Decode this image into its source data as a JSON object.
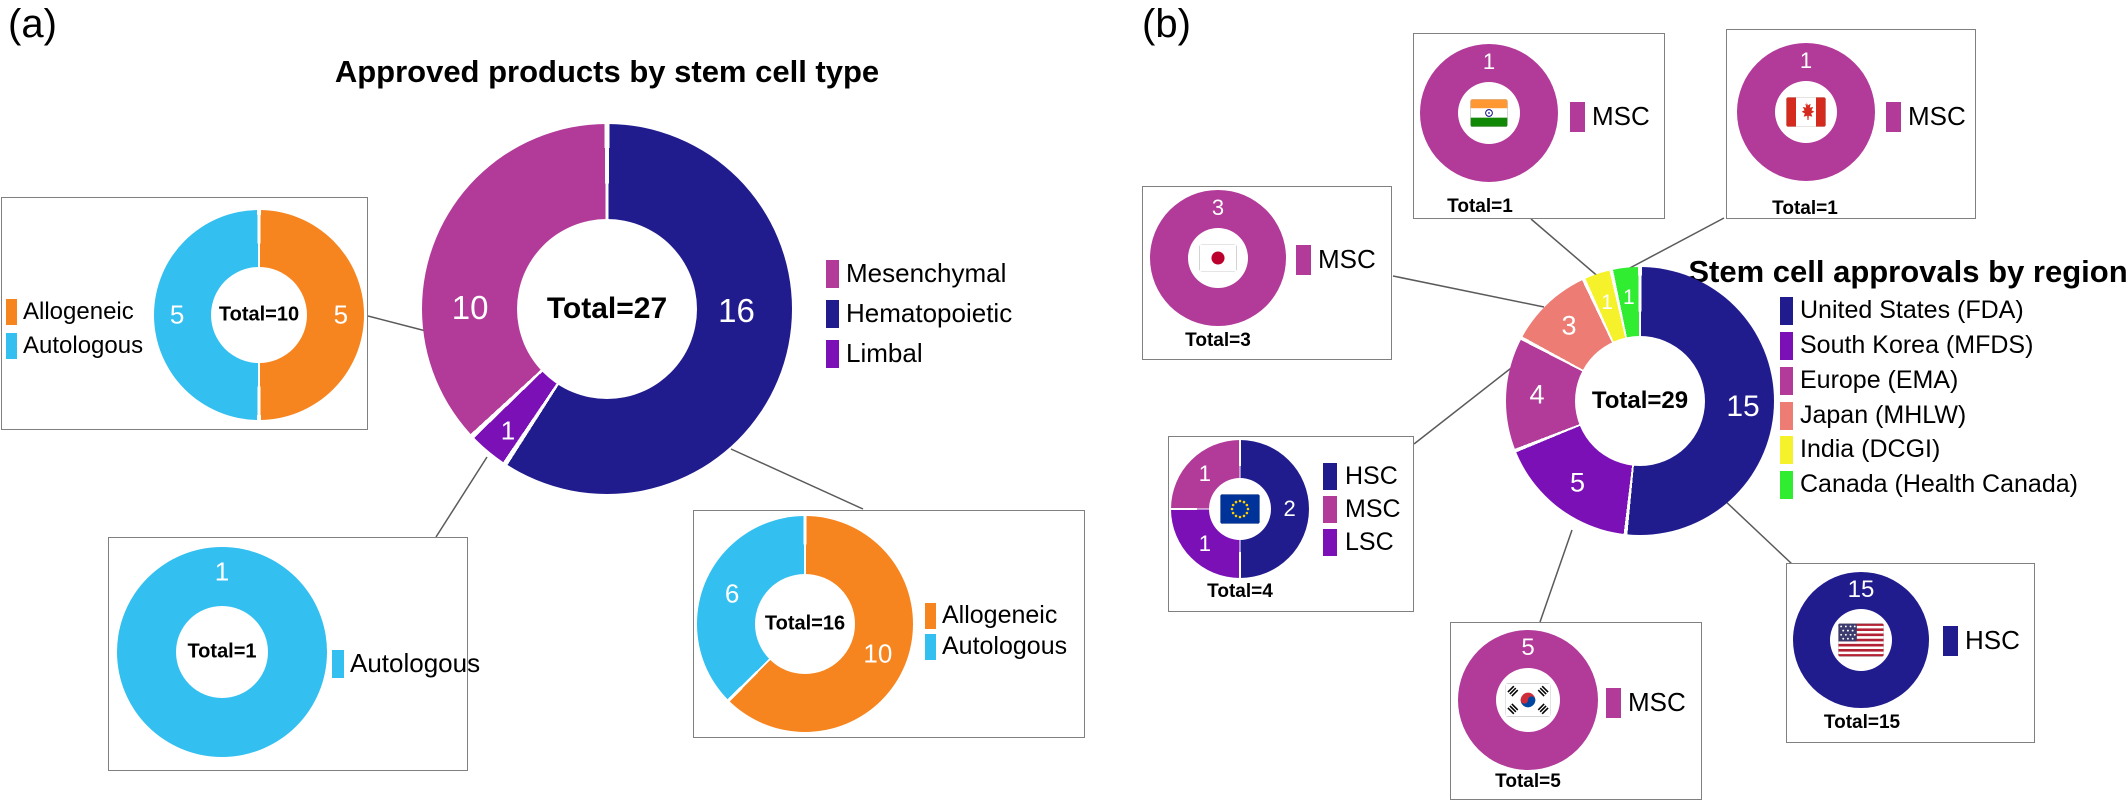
{
  "colors": {
    "navy": "#211C8D",
    "magenta": "#B23A99",
    "violet": "#7B10B6",
    "orange": "#F6851F",
    "cyan": "#33BFF0",
    "salmon": "#EC7C74",
    "yellow": "#F5F12B",
    "green": "#31ED31"
  },
  "panel_a": {
    "tag": "(a)",
    "title": "Approved products by stem cell type",
    "legend": [
      {
        "label": "Mesenchymal",
        "color": "#B23A99"
      },
      {
        "label": "Hematopoietic",
        "color": "#211C8D"
      },
      {
        "label": "Limbal",
        "color": "#7B10B6"
      }
    ],
    "box10_legend": [
      {
        "label": "Allogeneic",
        "color": "#F6851F"
      },
      {
        "label": "Autologous",
        "color": "#33BFF0"
      }
    ],
    "box1_legend": [
      {
        "label": "Autologous",
        "color": "#33BFF0"
      }
    ],
    "box16_legend": [
      {
        "label": "Allogeneic",
        "color": "#F6851F"
      },
      {
        "label": "Autologous",
        "color": "#33BFF0"
      }
    ]
  },
  "panel_b": {
    "tag": "(b)",
    "title": "Stem cell approvals by region",
    "legend": [
      {
        "label": "United States (FDA)",
        "color": "#211C8D"
      },
      {
        "label": "South Korea (MFDS)",
        "color": "#7B10B6"
      },
      {
        "label": "Europe (EMA)",
        "color": "#B23A99"
      },
      {
        "label": "Japan (MHLW)",
        "color": "#EC7C74"
      },
      {
        "label": "India (DCGI)",
        "color": "#F5F12B"
      },
      {
        "label": "Canada (Health Canada)",
        "color": "#31ED31"
      }
    ],
    "boxes": {
      "india": {
        "flag": "india-flag",
        "total_label": "Total=1",
        "legend": [
          {
            "label": "MSC",
            "color": "#B23A99"
          }
        ]
      },
      "canada": {
        "flag": "canada-flag",
        "total_label": "Total=1",
        "legend": [
          {
            "label": "MSC",
            "color": "#B23A99"
          }
        ]
      },
      "japan": {
        "flag": "japan-flag",
        "total_label": "Total=3",
        "legend": [
          {
            "label": "MSC",
            "color": "#B23A99"
          }
        ]
      },
      "europe": {
        "flag": "eu-flag",
        "total_label": "Total=4",
        "legend": [
          {
            "label": "HSC",
            "color": "#211C8D"
          },
          {
            "label": "MSC",
            "color": "#B23A99"
          },
          {
            "label": "LSC",
            "color": "#7B10B6"
          }
        ]
      },
      "south_korea": {
        "flag": "south-korea-flag",
        "total_label": "Total=5",
        "legend": [
          {
            "label": "MSC",
            "color": "#B23A99"
          }
        ]
      },
      "united_states": {
        "flag": "us-flag",
        "total_label": "Total=15",
        "legend": [
          {
            "label": "HSC",
            "color": "#211C8D"
          }
        ]
      }
    }
  },
  "chart_data": [
    {
      "id": "a-main",
      "type": "pie",
      "title": "Approved products by stem cell type",
      "center_label": "Total=27",
      "total": 27,
      "gap_deg": 1.6,
      "segments": [
        {
          "name": "Hematopoietic",
          "value": 16,
          "color": "#211C8D",
          "label": "16",
          "label_angle": 91,
          "label_r": 0.7,
          "label_size": 33
        },
        {
          "name": "Limbal",
          "value": 1,
          "color": "#7B10B6",
          "label": "1",
          "label_angle": 219,
          "label_r": 0.85,
          "label_size": 26
        },
        {
          "name": "Mesenchymal",
          "value": 10,
          "color": "#B23A99",
          "label": "10",
          "label_angle": 270.5,
          "label_r": 0.74,
          "label_size": 33
        }
      ]
    },
    {
      "id": "a-allo-auto-10",
      "type": "pie",
      "center_label": "Total=10",
      "total": 10,
      "gap_deg": 2,
      "label_r": 0.78,
      "label_size": 26,
      "segments": [
        {
          "name": "Allogeneic",
          "value": 5,
          "color": "#F6851F",
          "label": "5"
        },
        {
          "name": "Autologous",
          "value": 5,
          "color": "#33BFF0",
          "label": "5"
        }
      ]
    },
    {
      "id": "a-auto-1",
      "type": "pie",
      "center_label": "Total=1",
      "total": 1,
      "label_r": 0.76,
      "label_size": 26,
      "segments": [
        {
          "name": "Autologous",
          "value": 1,
          "color": "#33BFF0",
          "label": "1",
          "label_angle": 0
        }
      ]
    },
    {
      "id": "a-allo-auto-16",
      "type": "pie",
      "center_label": "Total=16",
      "total": 16,
      "gap_deg": 1.8,
      "label_r": 0.73,
      "label_size": 26,
      "segments": [
        {
          "name": "Allogeneic",
          "value": 10,
          "color": "#F6851F",
          "label": "10"
        },
        {
          "name": "Autologous",
          "value": 6,
          "color": "#33BFF0",
          "label": "6"
        }
      ]
    },
    {
      "id": "b-main",
      "type": "pie",
      "title": "Stem cell approvals by region",
      "center_label": "Total=29",
      "total": 29,
      "gap_deg": 1.6,
      "label_r": 0.77,
      "segments": [
        {
          "name": "United States (FDA)",
          "value": 15,
          "color": "#211C8D",
          "label": "15",
          "label_size": 30
        },
        {
          "name": "South Korea (MFDS)",
          "value": 5,
          "color": "#7B10B6",
          "label": "5",
          "label_size": 27
        },
        {
          "name": "Europe (EMA)",
          "value": 4,
          "color": "#B23A99",
          "label": "4",
          "label_size": 27
        },
        {
          "name": "Japan (MHLW)",
          "value": 3,
          "color": "#EC7C74",
          "label": "3",
          "label_size": 27
        },
        {
          "name": "India (DCGI)",
          "value": 1,
          "color": "#F5F12B",
          "label": "1",
          "label_size": 21
        },
        {
          "name": "Canada (Health Canada)",
          "value": 1,
          "color": "#31ED31",
          "label": "1",
          "label_size": 21
        }
      ]
    },
    {
      "id": "b-india",
      "type": "pie",
      "region": "India",
      "total": 1,
      "label_r": 0.74,
      "label_size": 22,
      "segments": [
        {
          "name": "MSC",
          "value": 1,
          "color": "#B23A99",
          "label": "1",
          "label_angle": 0
        }
      ]
    },
    {
      "id": "b-canada",
      "type": "pie",
      "region": "Canada",
      "total": 1,
      "label_r": 0.74,
      "label_size": 22,
      "segments": [
        {
          "name": "MSC",
          "value": 1,
          "color": "#B23A99",
          "label": "1",
          "label_angle": 0
        }
      ]
    },
    {
      "id": "b-japan",
      "type": "pie",
      "region": "Japan",
      "total": 3,
      "label_r": 0.74,
      "label_size": 22,
      "segments": [
        {
          "name": "MSC",
          "value": 3,
          "color": "#B23A99",
          "label": "3",
          "label_angle": 0
        }
      ]
    },
    {
      "id": "b-europe",
      "type": "pie",
      "region": "Europe",
      "total": 4,
      "gap_deg": 2,
      "label_r": 0.72,
      "label_size": 22,
      "segments": [
        {
          "name": "HSC",
          "value": 2,
          "color": "#211C8D",
          "label": "2"
        },
        {
          "name": "LSC",
          "value": 1,
          "color": "#7B10B6",
          "label": "1"
        },
        {
          "name": "MSC",
          "value": 1,
          "color": "#B23A99",
          "label": "1"
        }
      ]
    },
    {
      "id": "b-south-korea",
      "type": "pie",
      "region": "South Korea",
      "total": 5,
      "label_r": 0.74,
      "label_size": 24,
      "segments": [
        {
          "name": "MSC",
          "value": 5,
          "color": "#B23A99",
          "label": "5",
          "label_angle": 0
        }
      ]
    },
    {
      "id": "b-united-states",
      "type": "pie",
      "region": "United States",
      "total": 15,
      "label_r": 0.74,
      "label_size": 24,
      "segments": [
        {
          "name": "HSC",
          "value": 15,
          "color": "#211C8D",
          "label": "15",
          "label_angle": 0
        }
      ]
    }
  ]
}
